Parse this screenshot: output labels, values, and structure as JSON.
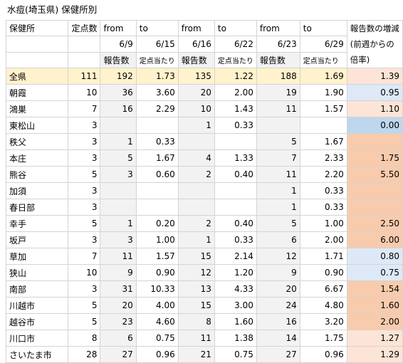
{
  "title": "水痘(埼玉県) 保健所別",
  "header": {
    "row1": [
      "保健所",
      "定点数",
      "from",
      "to",
      "from",
      "to",
      "from",
      "to",
      "報告数の増減(前週からの倍率)"
    ],
    "row2": [
      null,
      null,
      "6/9",
      "6/15",
      "6/16",
      "6/22",
      "6/23",
      "6/29",
      null
    ],
    "row3": [
      null,
      null,
      "報告数",
      "定点当たり",
      "報告数",
      "定点当たり",
      "報告数",
      "定点当たり",
      null
    ]
  },
  "table": {
    "rows": [
      [
        "全県",
        "111",
        "192",
        "1.73",
        "135",
        "1.22",
        "188",
        "1.69",
        "1.39"
      ],
      [
        "朝霞",
        "10",
        "36",
        "3.60",
        "20",
        "2.00",
        "19",
        "1.90",
        "0.95"
      ],
      [
        "鴻巣",
        "7",
        "16",
        "2.29",
        "10",
        "1.43",
        "11",
        "1.57",
        "1.10"
      ],
      [
        "東松山",
        "3",
        null,
        null,
        "1",
        "0.33",
        null,
        null,
        "0.00"
      ],
      [
        "秩父",
        "3",
        "1",
        "0.33",
        null,
        null,
        "5",
        "1.67",
        null
      ],
      [
        "本庄",
        "3",
        "5",
        "1.67",
        "4",
        "1.33",
        "7",
        "2.33",
        "1.75"
      ],
      [
        "熊谷",
        "5",
        "3",
        "0.60",
        "2",
        "0.40",
        "11",
        "2.20",
        "5.50"
      ],
      [
        "加須",
        "3",
        null,
        null,
        null,
        null,
        "1",
        "0.33",
        null
      ],
      [
        "春日部",
        "3",
        null,
        null,
        null,
        null,
        "1",
        "0.33",
        null
      ],
      [
        "幸手",
        "5",
        "1",
        "0.20",
        "2",
        "0.40",
        "5",
        "1.00",
        "2.50"
      ],
      [
        "坂戸",
        "3",
        "3",
        "1.00",
        "1",
        "0.33",
        "6",
        "2.00",
        "6.00"
      ],
      [
        "草加",
        "7",
        "11",
        "1.57",
        "15",
        "2.14",
        "12",
        "1.71",
        "0.80"
      ],
      [
        "狭山",
        "10",
        "9",
        "0.90",
        "12",
        "1.20",
        "9",
        "0.90",
        "0.75"
      ],
      [
        "南部",
        "3",
        "31",
        "10.33",
        "13",
        "4.33",
        "20",
        "6.67",
        "1.54"
      ],
      [
        "川越市",
        "5",
        "20",
        "4.00",
        "15",
        "3.00",
        "24",
        "4.80",
        "1.60"
      ],
      [
        "越谷市",
        "5",
        "23",
        "4.60",
        "8",
        "1.60",
        "16",
        "3.20",
        "2.00"
      ],
      [
        "川口市",
        "8",
        "6",
        "0.75",
        "11",
        "1.38",
        "14",
        "1.75",
        "1.27"
      ],
      [
        "さいたま市",
        "28",
        "27",
        "0.96",
        "21",
        "0.75",
        "27",
        "0.96",
        "1.29"
      ]
    ],
    "ratio_colors": [
      "#fce4d6",
      "#dde9f6",
      "#fce4d6",
      "#bdd7ee",
      "#f8cbad",
      "#f8cbad",
      "#f8cbad",
      "#f8cbad",
      "#f8cbad",
      "#f8cbad",
      "#f8cbad",
      "#dde9f6",
      "#dde9f6",
      "#f8cbad",
      "#f8cbad",
      "#f8cbad",
      "#fce4d6",
      "#fce4d6"
    ]
  }
}
